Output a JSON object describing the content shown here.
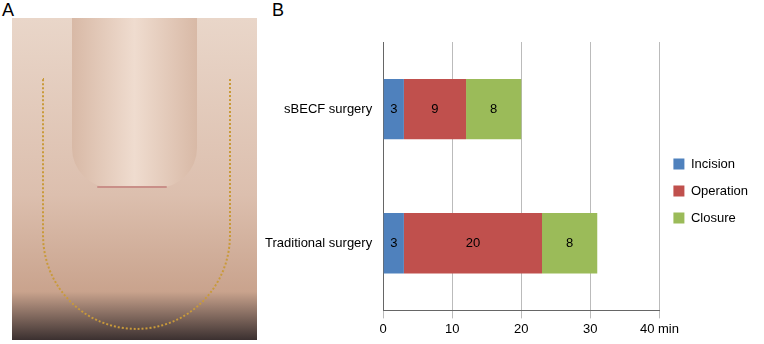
{
  "panel_labels": [
    "A",
    "B"
  ],
  "chart_data": {
    "type": "bar",
    "orientation": "horizontal",
    "stacked": true,
    "categories": [
      "sBECF surgery",
      "Traditional surgery"
    ],
    "series": [
      {
        "name": "Incision",
        "color": "#4f81bd",
        "values": [
          3,
          3
        ]
      },
      {
        "name": "Operation",
        "color": "#c0504d",
        "values": [
          9,
          20
        ]
      },
      {
        "name": "Closure",
        "color": "#9bbb59",
        "values": [
          8,
          8
        ]
      }
    ],
    "xlim": [
      0,
      40
    ],
    "xticks": [
      0,
      10,
      20,
      30,
      {
        "value": 40,
        "label": "40 min"
      }
    ],
    "grid": true,
    "legend": "right",
    "data_labels": true
  }
}
